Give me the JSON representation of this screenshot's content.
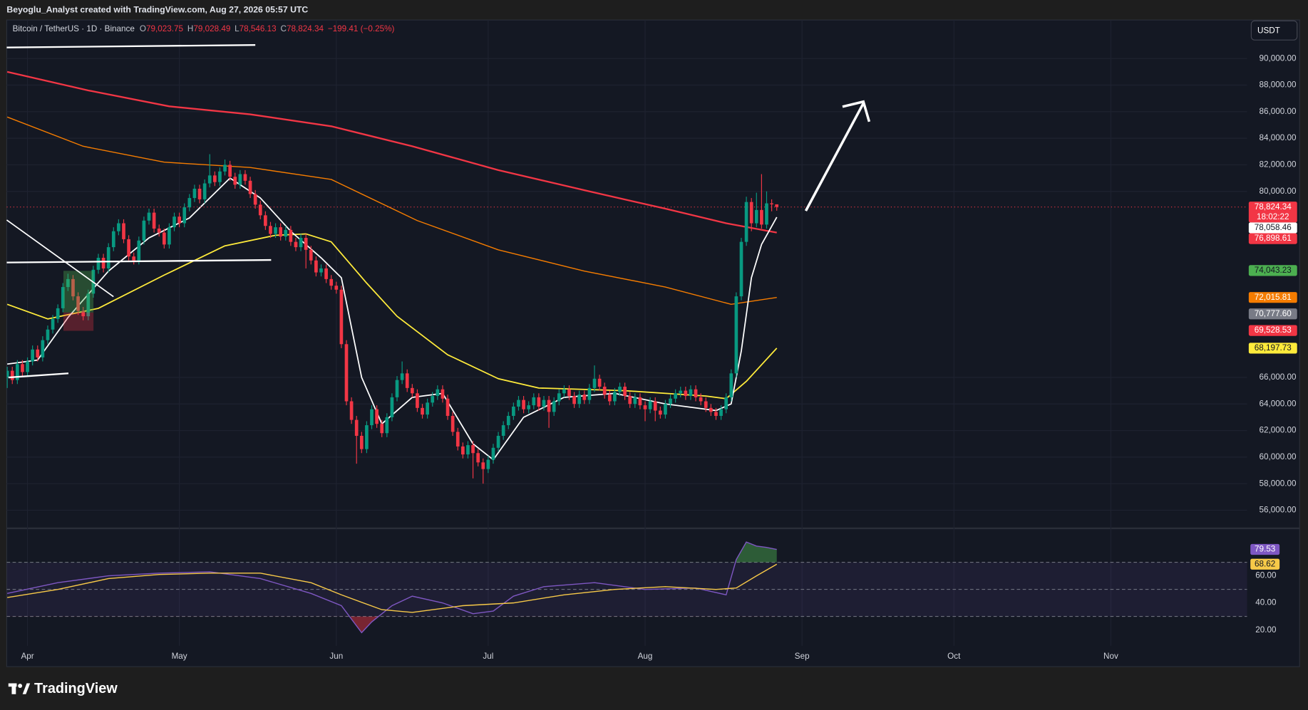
{
  "header": {
    "credit": "Beyoglu_Analyst created with TradingView.com, Aug 27, 2026 05:57 UTC"
  },
  "footer": {
    "brand": "TradingView"
  },
  "chart_data": {
    "type": "candlestick",
    "title": "Bitcoin / TetherUS · 1D · Binance",
    "legend": [
      {
        "key": "O",
        "text": "79,023.75"
      },
      {
        "key": "H",
        "text": "79,028.49"
      },
      {
        "key": "L",
        "text": "78,546.13"
      },
      {
        "key": "C",
        "text": "78,824.34"
      }
    ],
    "change": "−199.41 (−0.25%)",
    "currency": "USDT",
    "xlim": [
      -0.1,
      244.9
    ],
    "xticks": [
      {
        "value": 4,
        "label": "Apr"
      },
      {
        "value": 34,
        "label": "May"
      },
      {
        "value": 65,
        "label": "Jun"
      },
      {
        "value": 95,
        "label": "Jul"
      },
      {
        "value": 126,
        "label": "Aug"
      },
      {
        "value": 157,
        "label": "Sep"
      },
      {
        "value": 187,
        "label": "Oct"
      },
      {
        "value": 218,
        "label": "Nov"
      }
    ],
    "ylim": [
      54700,
      92900
    ],
    "yticks": [
      {
        "value": 90000,
        "label": "90,000.00"
      },
      {
        "value": 88000,
        "label": "88,000.00"
      },
      {
        "value": 86000,
        "label": "86,000.00"
      },
      {
        "value": 84000,
        "label": "84,000.00"
      },
      {
        "value": 82000,
        "label": "82,000.00"
      },
      {
        "value": 80000,
        "label": "80,000.00"
      },
      {
        "value": 66000,
        "label": "66,000.00"
      },
      {
        "value": 64000,
        "label": "64,000.00"
      },
      {
        "value": 62000,
        "label": "62,000.00"
      },
      {
        "value": 60000,
        "label": "60,000.00"
      },
      {
        "value": 58000,
        "label": "58,000.00"
      },
      {
        "value": 56000,
        "label": "56,000.00"
      }
    ],
    "grid": true,
    "up_color": "#089981",
    "down_color": "#f23645",
    "candles": [
      [
        66000,
        66800,
        65200,
        66500
      ],
      [
        66500,
        66800,
        65500,
        65800
      ],
      [
        65800,
        67300,
        65500,
        67000
      ],
      [
        67000,
        67300,
        66100,
        66400
      ],
      [
        66400,
        67500,
        66100,
        67200
      ],
      [
        67200,
        68400,
        66900,
        68100
      ],
      [
        68100,
        68400,
        67200,
        67500
      ],
      [
        67500,
        69100,
        67200,
        68800
      ],
      [
        68800,
        69900,
        68500,
        69600
      ],
      [
        69600,
        70700,
        69300,
        70400
      ],
      [
        70400,
        71500,
        70100,
        71200
      ],
      [
        71200,
        73100,
        70900,
        72800
      ],
      [
        72800,
        73800,
        72500,
        73400
      ],
      [
        73400,
        73700,
        71800,
        72100
      ],
      [
        72100,
        72400,
        70700,
        71000
      ],
      [
        71000,
        71300,
        70300,
        70600
      ],
      [
        70600,
        72600,
        70300,
        72300
      ],
      [
        72300,
        74400,
        72000,
        74100
      ],
      [
        74100,
        75300,
        73800,
        75000
      ],
      [
        75000,
        75300,
        73900,
        74200
      ],
      [
        74200,
        76100,
        73900,
        75800
      ],
      [
        75800,
        77300,
        75500,
        77000
      ],
      [
        77000,
        77900,
        76700,
        77600
      ],
      [
        77600,
        77900,
        76100,
        76400
      ],
      [
        76400,
        76700,
        74800,
        75100
      ],
      [
        75100,
        75400,
        74500,
        74800
      ],
      [
        74800,
        76600,
        74500,
        76300
      ],
      [
        76300,
        78100,
        76000,
        77800
      ],
      [
        77800,
        78700,
        77500,
        78400
      ],
      [
        78400,
        78700,
        76900,
        77200
      ],
      [
        77200,
        77500,
        76600,
        76900
      ],
      [
        76900,
        77200,
        75700,
        76000
      ],
      [
        76000,
        77600,
        75700,
        77300
      ],
      [
        77300,
        78400,
        77000,
        78100
      ],
      [
        78100,
        78400,
        77300,
        77600
      ],
      [
        77600,
        79100,
        77300,
        78800
      ],
      [
        78800,
        79800,
        78500,
        79500
      ],
      [
        79500,
        80500,
        79200,
        80200
      ],
      [
        80200,
        80500,
        79100,
        79400
      ],
      [
        79400,
        80900,
        79100,
        80600
      ],
      [
        80600,
        82800,
        80300,
        81200
      ],
      [
        81200,
        81500,
        80400,
        80700
      ],
      [
        80700,
        81800,
        80400,
        81500
      ],
      [
        81500,
        82400,
        81200,
        82000
      ],
      [
        82000,
        82300,
        80800,
        81100
      ],
      [
        81100,
        81400,
        80200,
        80500
      ],
      [
        80500,
        81600,
        80200,
        81300
      ],
      [
        81300,
        81600,
        80500,
        80800
      ],
      [
        80800,
        81100,
        79500,
        79800
      ],
      [
        79800,
        80100,
        78700,
        79000
      ],
      [
        79000,
        79300,
        77900,
        78200
      ],
      [
        78200,
        78500,
        77100,
        77400
      ],
      [
        77400,
        77700,
        76500,
        76800
      ],
      [
        76800,
        77600,
        76500,
        77300
      ],
      [
        77300,
        77600,
        76300,
        76600
      ],
      [
        76600,
        77400,
        76300,
        77100
      ],
      [
        77100,
        77400,
        75900,
        76200
      ],
      [
        76200,
        76500,
        75500,
        75800
      ],
      [
        75800,
        76800,
        75500,
        76500
      ],
      [
        76500,
        76800,
        74200,
        75600
      ],
      [
        75600,
        75900,
        74500,
        74800
      ],
      [
        74800,
        75100,
        73600,
        73900
      ],
      [
        73900,
        74500,
        73600,
        74200
      ],
      [
        74200,
        74500,
        73100,
        73400
      ],
      [
        73400,
        73700,
        72600,
        72900
      ],
      [
        72900,
        73200,
        72300,
        72600
      ],
      [
        72600,
        72900,
        68200,
        68500
      ],
      [
        68500,
        68800,
        63900,
        64200
      ],
      [
        64200,
        64500,
        62500,
        62800
      ],
      [
        62800,
        63100,
        59500,
        61600
      ],
      [
        61600,
        61900,
        60300,
        60600
      ],
      [
        60600,
        62700,
        60300,
        62400
      ],
      [
        62400,
        63900,
        62100,
        63600
      ],
      [
        63600,
        63900,
        62200,
        62500
      ],
      [
        62500,
        62800,
        61500,
        61800
      ],
      [
        61800,
        63300,
        61500,
        63000
      ],
      [
        63000,
        64800,
        62700,
        64500
      ],
      [
        64500,
        66100,
        64200,
        65800
      ],
      [
        65800,
        67200,
        65500,
        66300
      ],
      [
        66300,
        66600,
        64900,
        65200
      ],
      [
        65200,
        65500,
        64500,
        64800
      ],
      [
        64800,
        65100,
        63400,
        63700
      ],
      [
        63700,
        64000,
        62900,
        63200
      ],
      [
        63200,
        64400,
        62900,
        64100
      ],
      [
        64100,
        64900,
        63800,
        64600
      ],
      [
        64600,
        65400,
        64300,
        65100
      ],
      [
        65100,
        65400,
        64100,
        64400
      ],
      [
        64400,
        64700,
        62800,
        63100
      ],
      [
        63100,
        63400,
        61600,
        61900
      ],
      [
        61900,
        62200,
        60500,
        60800
      ],
      [
        60800,
        61100,
        59900,
        60200
      ],
      [
        60200,
        61200,
        59900,
        60900
      ],
      [
        60900,
        61200,
        58400,
        60300
      ],
      [
        60300,
        60600,
        59300,
        59600
      ],
      [
        59600,
        59900,
        58000,
        59100
      ],
      [
        59100,
        60100,
        58800,
        59800
      ],
      [
        59800,
        61000,
        59500,
        60700
      ],
      [
        60700,
        61900,
        60400,
        61600
      ],
      [
        61600,
        62700,
        61300,
        62400
      ],
      [
        62400,
        63400,
        62100,
        63100
      ],
      [
        63100,
        64100,
        62800,
        63800
      ],
      [
        63800,
        64600,
        63500,
        64300
      ],
      [
        64300,
        64600,
        63300,
        63600
      ],
      [
        63600,
        64200,
        63300,
        63900
      ],
      [
        63900,
        64800,
        63600,
        64500
      ],
      [
        64500,
        64800,
        63500,
        63800
      ],
      [
        63800,
        64600,
        63500,
        64300
      ],
      [
        64300,
        64600,
        62200,
        63400
      ],
      [
        63400,
        64500,
        63100,
        64200
      ],
      [
        64200,
        65100,
        63900,
        64800
      ],
      [
        64800,
        65400,
        64500,
        65100
      ],
      [
        65100,
        65400,
        64300,
        64600
      ],
      [
        64600,
        64900,
        63700,
        64000
      ],
      [
        64000,
        65000,
        63700,
        64700
      ],
      [
        64700,
        65000,
        64000,
        64300
      ],
      [
        64300,
        65500,
        64000,
        65200
      ],
      [
        65200,
        66900,
        64900,
        65900
      ],
      [
        65900,
        66200,
        65000,
        65300
      ],
      [
        65300,
        65600,
        64400,
        64700
      ],
      [
        64700,
        65000,
        63900,
        64200
      ],
      [
        64200,
        65200,
        63900,
        64900
      ],
      [
        64900,
        65600,
        64600,
        65300
      ],
      [
        65300,
        65600,
        64300,
        64600
      ],
      [
        64600,
        64900,
        63700,
        64000
      ],
      [
        64000,
        64800,
        63700,
        64500
      ],
      [
        64500,
        64800,
        63600,
        63900
      ],
      [
        63900,
        64200,
        62700,
        63600
      ],
      [
        63600,
        64500,
        63300,
        64200
      ],
      [
        64200,
        64500,
        62700,
        63500
      ],
      [
        63500,
        63800,
        62900,
        63200
      ],
      [
        63200,
        64300,
        62900,
        64000
      ],
      [
        64000,
        64700,
        63700,
        64400
      ],
      [
        64400,
        65100,
        64100,
        64800
      ],
      [
        64800,
        65300,
        64500,
        65000
      ],
      [
        65000,
        65300,
        64300,
        64600
      ],
      [
        64600,
        65400,
        64300,
        65100
      ],
      [
        65100,
        65400,
        64200,
        64500
      ],
      [
        64500,
        64800,
        63900,
        64200
      ],
      [
        64200,
        64500,
        63400,
        63700
      ],
      [
        63700,
        64000,
        63100,
        63400
      ],
      [
        63400,
        63700,
        62800,
        63100
      ],
      [
        63100,
        63900,
        62800,
        63600
      ],
      [
        63600,
        64800,
        63300,
        64500
      ],
      [
        64500,
        66600,
        64200,
        66300
      ],
      [
        66300,
        72400,
        66000,
        72100
      ],
      [
        72100,
        76500,
        71800,
        76200
      ],
      [
        76200,
        79600,
        75900,
        79200
      ],
      [
        79200,
        79500,
        77000,
        77600
      ],
      [
        77600,
        79900,
        77300,
        78600
      ],
      [
        78600,
        81300,
        77200,
        77500
      ],
      [
        77500,
        80000,
        77200,
        79100
      ],
      [
        79100,
        79400,
        78500,
        79023.75
      ],
      [
        79023.75,
        79028.49,
        78546.13,
        78824.34
      ]
    ],
    "overlays": [
      {
        "color": "#f23645",
        "width": 2,
        "x": [
          0,
          16,
          32,
          48,
          64,
          80,
          97,
          115,
          130,
          142,
          152
        ],
        "values": [
          89000,
          87600,
          86400,
          85800,
          84900,
          83400,
          81600,
          80000,
          78700,
          77600,
          76898.61
        ]
      },
      {
        "color": "#f57c00",
        "width": 1.2,
        "x": [
          0,
          15,
          31,
          48,
          64,
          81,
          97,
          114,
          130,
          143,
          152
        ],
        "values": [
          85600,
          83400,
          82200,
          81800,
          80900,
          77800,
          75600,
          74000,
          72800,
          71500,
          72015.81
        ]
      },
      {
        "color": "#ffeb3b",
        "width": 1.5,
        "x": [
          0,
          8,
          18,
          31,
          43,
          53,
          59,
          64,
          71,
          77,
          87,
          97,
          105,
          122,
          138,
          142,
          146,
          152
        ],
        "values": [
          71500,
          70400,
          71200,
          73700,
          75900,
          76700,
          76800,
          76200,
          73100,
          70600,
          67700,
          65900,
          65200,
          65000,
          64600,
          64400,
          65700,
          68197.73
        ]
      },
      {
        "color": "#ffffff",
        "width": 1.5,
        "x": [
          0,
          6,
          12,
          20,
          28,
          36,
          44,
          50,
          56,
          62,
          66,
          70,
          74,
          80,
          86,
          92,
          96,
          102,
          110,
          120,
          130,
          140,
          143,
          145,
          147,
          149,
          152
        ],
        "values": [
          67000,
          67300,
          70500,
          74000,
          76500,
          78000,
          81000,
          79500,
          77000,
          75000,
          73500,
          66000,
          62500,
          64500,
          64800,
          61000,
          59800,
          63000,
          64500,
          64800,
          64000,
          63500,
          64000,
          68000,
          73500,
          76000,
          78058.46
        ]
      }
    ],
    "price_labels": [
      {
        "value": 78824.34,
        "label": "78,824.34",
        "color": "#f23645",
        "text_color": "#ffffff"
      },
      {
        "value": 78058.46,
        "label": "78,058.46",
        "color": "#ffffff",
        "text_color": "#131722"
      },
      {
        "value": 76898.61,
        "label": "76,898.61",
        "color": "#f23645",
        "text_color": "#ffffff"
      },
      {
        "value": 74043.23,
        "label": "74,043.23",
        "color": "#4caf50",
        "text_color": "#131722"
      },
      {
        "value": 72015.81,
        "label": "72,015.81",
        "color": "#f57c00",
        "text_color": "#ffffff"
      },
      {
        "value": 70777.6,
        "label": "70,777.60",
        "color": "#787b86",
        "text_color": "#ffffff"
      },
      {
        "value": 69528.53,
        "label": "69,528.53",
        "color": "#f23645",
        "text_color": "#ffffff"
      },
      {
        "value": 68197.73,
        "label": "68,197.73",
        "color": "#ffeb3b",
        "text_color": "#131722"
      }
    ],
    "countdown": "18:02:22",
    "rsi": {
      "ylim": [
        8.3,
        94.5
      ],
      "yticks": [
        {
          "value": 60,
          "label": "60.00"
        },
        {
          "value": 40,
          "label": "40.00"
        },
        {
          "value": 20,
          "label": "20.00"
        }
      ],
      "levels": [
        70,
        50,
        30
      ],
      "series": [
        {
          "color": "#7e57c2",
          "x": [
            0,
            10,
            20,
            30,
            40,
            50,
            60,
            66,
            70,
            72,
            76,
            80,
            86,
            92,
            96,
            100,
            106,
            116,
            126,
            136,
            142,
            144,
            146,
            148,
            150,
            152
          ],
          "values": [
            47,
            55,
            60,
            62,
            63,
            58,
            47,
            38,
            18,
            26,
            38,
            45,
            40,
            32,
            34,
            45,
            52,
            55,
            50,
            51,
            46,
            72,
            85,
            82,
            81,
            79.53
          ]
        },
        {
          "color": "#f7c948",
          "x": [
            0,
            10,
            20,
            30,
            40,
            50,
            60,
            66,
            74,
            80,
            90,
            100,
            110,
            120,
            130,
            140,
            144,
            148,
            152
          ],
          "values": [
            44,
            50,
            58,
            61,
            62,
            62,
            55,
            46,
            35,
            33,
            38,
            40,
            46,
            50,
            52,
            50,
            51,
            60,
            68.62
          ]
        }
      ],
      "value_labels": [
        {
          "value": 79.53,
          "label": "79.53",
          "color": "#7e57c2",
          "text_color": "#ffffff"
        },
        {
          "value": 68.62,
          "label": "68.62",
          "color": "#f7c948",
          "text_color": "#131722"
        }
      ]
    }
  }
}
